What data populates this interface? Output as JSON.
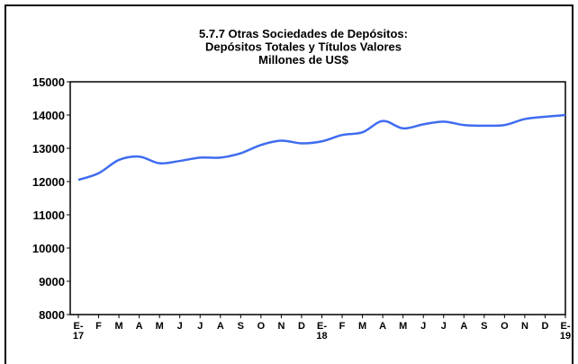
{
  "chart_data": {
    "type": "line",
    "title": [
      "5.7.7 Otras Sociedades de Depósitos:",
      "Depósitos Totales y Títulos Valores",
      "Millones de US$"
    ],
    "categories": [
      "E-\n17",
      "F",
      "M",
      "A",
      "M",
      "J",
      "J",
      "A",
      "S",
      "O",
      "N",
      "D",
      "E-\n18",
      "F",
      "M",
      "A",
      "M",
      "J",
      "J",
      "A",
      "S",
      "O",
      "N",
      "D",
      "E-\n19"
    ],
    "series": [
      {
        "name": "Depósitos Totales y Títulos Valores",
        "color": "#3f6cf0",
        "values": [
          12050,
          12250,
          12650,
          12750,
          12550,
          12620,
          12720,
          12720,
          12850,
          13100,
          13230,
          13150,
          13210,
          13400,
          13480,
          13820,
          13600,
          13720,
          13800,
          13700,
          13680,
          13700,
          13880,
          13950,
          14000
        ]
      }
    ],
    "ylim": [
      8000,
      15000
    ],
    "yticks": [
      8000,
      9000,
      10000,
      11000,
      12000,
      13000,
      14000,
      15000
    ],
    "grid": false
  }
}
